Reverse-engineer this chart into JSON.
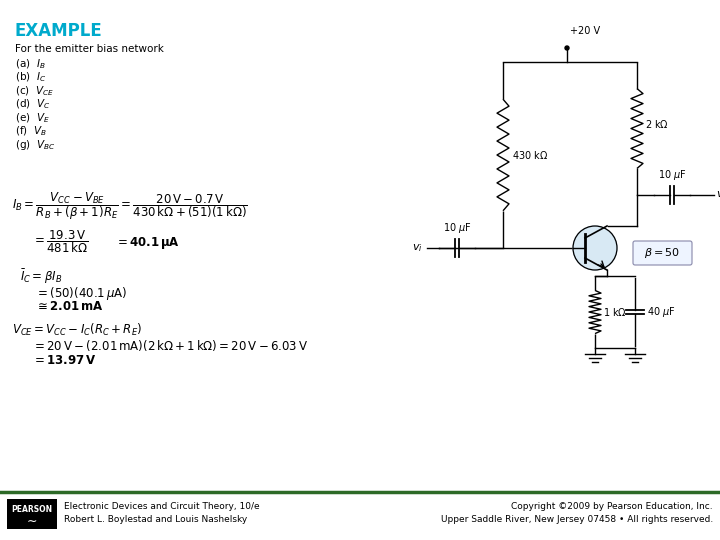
{
  "title": "EXAMPLE",
  "title_color": "#00AACC",
  "bg_color": "#FFFFFF",
  "footer_line_color": "#2D6A27",
  "footer_left_line1": "Electronic Devices and Circuit Theory, 10/e",
  "footer_left_line2": "Robert L. Boylestad and Louis Nashelsky",
  "footer_right_line1": "Copyright ©2009 by Pearson Education, Inc.",
  "footer_right_line2": "Upper Saddle River, New Jersey 07458 • All rights reserved.",
  "problem_text": "For the emitter bias network",
  "items": [
    "(a)  $I_B$",
    "(b)  $I_C$",
    "(c)  $V_{CE}$",
    "(d)  $V_C$",
    "(e)  $V_E$",
    "(f)  $V_B$",
    "(g)  $V_{BC}$"
  ]
}
